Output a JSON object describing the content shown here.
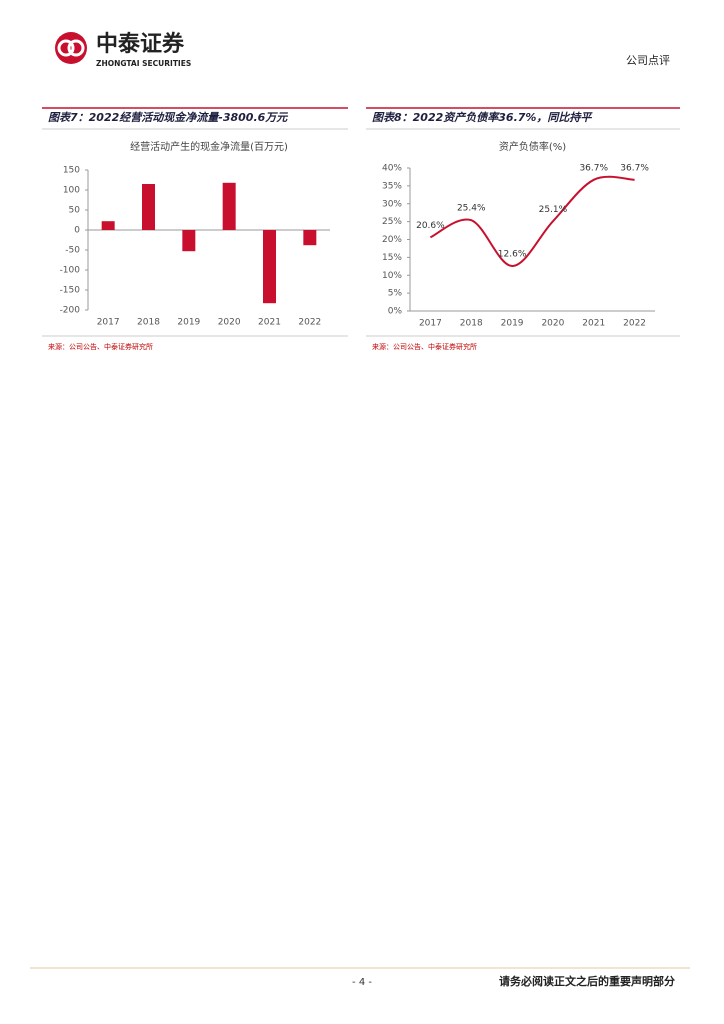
{
  "header": {
    "logo_name": "中泰证券",
    "logo_en": "ZHONGTAI SECURITIES",
    "report_type": "公司点评"
  },
  "chart_data": [
    {
      "type": "bar",
      "caption": "图表7：2022经营活动现金净流量-3800.6万元",
      "title": "经营活动产生的现金净流量(百万元)",
      "categories": [
        "2017",
        "2018",
        "2019",
        "2020",
        "2021",
        "2022"
      ],
      "values": [
        22,
        115,
        -53,
        118,
        -183,
        -38
      ],
      "color": "#c8102e",
      "ylim": [
        -200,
        150
      ],
      "yticks": [
        -200,
        -150,
        -100,
        -50,
        0,
        50,
        100,
        150
      ],
      "source": "来源：公司公告、中泰证券研究所"
    },
    {
      "type": "line",
      "caption": "图表8：2022资产负债率36.7%，同比持平",
      "title": "资产负债率(%)",
      "categories": [
        "2017",
        "2018",
        "2019",
        "2020",
        "2021",
        "2022"
      ],
      "values": [
        20.6,
        25.4,
        12.6,
        25.1,
        36.7,
        36.7
      ],
      "value_labels": [
        "20.6%",
        "25.4%",
        "12.6%",
        "25.1%",
        "36.7%",
        "36.7%"
      ],
      "color": "#c8102e",
      "ylim": [
        0,
        40
      ],
      "yticks": [
        {
          "value": 0,
          "label": "0%"
        },
        {
          "value": 5,
          "label": "5%"
        },
        {
          "value": 10,
          "label": "10%"
        },
        {
          "value": 15,
          "label": "15%"
        },
        {
          "value": 20,
          "label": "20%"
        },
        {
          "value": 25,
          "label": "25%"
        },
        {
          "value": 30,
          "label": "30%"
        },
        {
          "value": 35,
          "label": "35%"
        },
        {
          "value": 40,
          "label": "40%"
        }
      ],
      "source": "来源：公司公告、中泰证券研究所"
    }
  ],
  "footer": {
    "page": "- 4 -",
    "disclaimer": "请务必阅读正文之后的重要声明部分"
  }
}
